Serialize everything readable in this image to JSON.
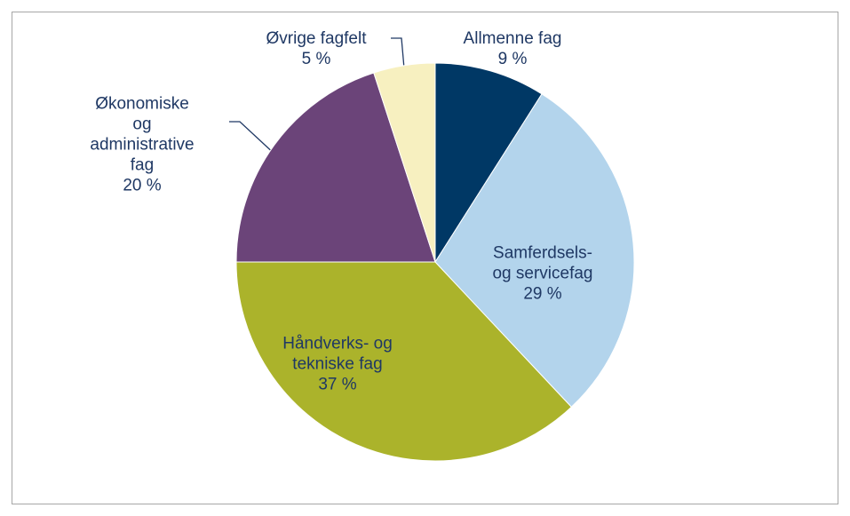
{
  "chart_data": {
    "type": "pie",
    "categories": [
      "Allmenne fag",
      "Samferdsels-\nog servicefag",
      "Håndverks- og\ntekniske fag",
      "Økonomiske\nog\nadministrative\nfag",
      "Øvrige fagfelt"
    ],
    "values": [
      9,
      29,
      37,
      20,
      5
    ],
    "value_labels": [
      "9 %",
      "29 %",
      "37 %",
      "20 %",
      "5 %"
    ],
    "colors": [
      "#003865",
      "#b3d4ec",
      "#abb32b",
      "#6b4479",
      "#f7f0c0"
    ]
  }
}
